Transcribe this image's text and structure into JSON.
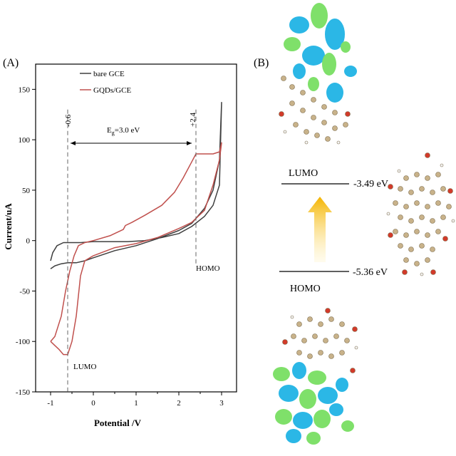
{
  "panel_a_label": "(A)",
  "panel_b_label": "(B)",
  "chart_data": {
    "type": "line",
    "xlabel": "Potential /V",
    "ylabel": "Current/uA",
    "xlim": [
      -1.35,
      3.35
    ],
    "ylim": [
      -150,
      175
    ],
    "xticks": [
      "-1",
      "0",
      "1",
      "2",
      "3"
    ],
    "yticks": [
      "150",
      "100",
      "50",
      "0",
      "-50",
      "-100",
      "-150"
    ],
    "legend_position": "top-left",
    "series": [
      {
        "name": "bare GCE",
        "color": "#3f3f3f",
        "x": [
          -1.0,
          -0.9,
          -0.75,
          -0.6,
          -0.4,
          -0.2,
          0.0,
          0.5,
          1.0,
          1.5,
          2.0,
          2.3,
          2.6,
          2.8,
          2.95,
          3.0,
          2.95,
          2.8,
          2.6,
          2.3,
          2.0,
          1.6,
          1.2,
          0.8,
          0.4,
          0.0,
          -0.3,
          -0.5,
          -0.7,
          -0.85,
          -0.95,
          -1.0
        ],
        "y": [
          -28,
          -25,
          -23,
          -22,
          -22,
          -20,
          -17,
          -10,
          -5,
          2,
          10,
          17,
          32,
          50,
          80,
          137,
          55,
          35,
          24,
          14,
          7,
          3,
          0,
          -1,
          -1,
          -1,
          -2,
          -2,
          -2,
          -5,
          -12,
          -20
        ]
      },
      {
        "name": "GQDs/GCE",
        "color": "#c0504d",
        "x": [
          -1.0,
          -0.9,
          -0.8,
          -0.7,
          -0.6,
          -0.5,
          -0.4,
          -0.3,
          -0.2,
          0.0,
          0.5,
          1.0,
          1.5,
          2.0,
          2.3,
          2.6,
          2.8,
          2.95,
          3.0,
          2.95,
          2.8,
          2.6,
          2.4,
          2.3,
          2.1,
          1.9,
          1.6,
          1.2,
          0.9,
          0.75,
          0.7,
          0.4,
          0.0,
          -0.2,
          -0.35,
          -0.45,
          -0.55,
          -0.65,
          -0.75,
          -0.9,
          -1.0
        ],
        "y": [
          -100,
          -104,
          -108,
          -113,
          -113,
          -100,
          -75,
          -35,
          -20,
          -15,
          -7,
          -3,
          3,
          12,
          18,
          30,
          55,
          80,
          97,
          88,
          86,
          86,
          86,
          78,
          62,
          48,
          35,
          25,
          18,
          15,
          11,
          5,
          0,
          -2,
          -5,
          -15,
          -30,
          -50,
          -75,
          -95,
          -100
        ]
      }
    ],
    "annotations": {
      "lumo_potential": "-0.6",
      "homo_potential": "+2.4",
      "lumo_x": -0.6,
      "homo_x": 2.4,
      "gap_text": "=3.0 eV",
      "gap_symbol": "E",
      "gap_subscript": "g",
      "lumo_label": "LUMO",
      "homo_label": "HOMO"
    }
  },
  "panel_b": {
    "lumo_label": "LUMO",
    "homo_label": "HOMO",
    "lumo_energy": "-3.49 eV",
    "homo_energy": "-5.36 eV"
  }
}
